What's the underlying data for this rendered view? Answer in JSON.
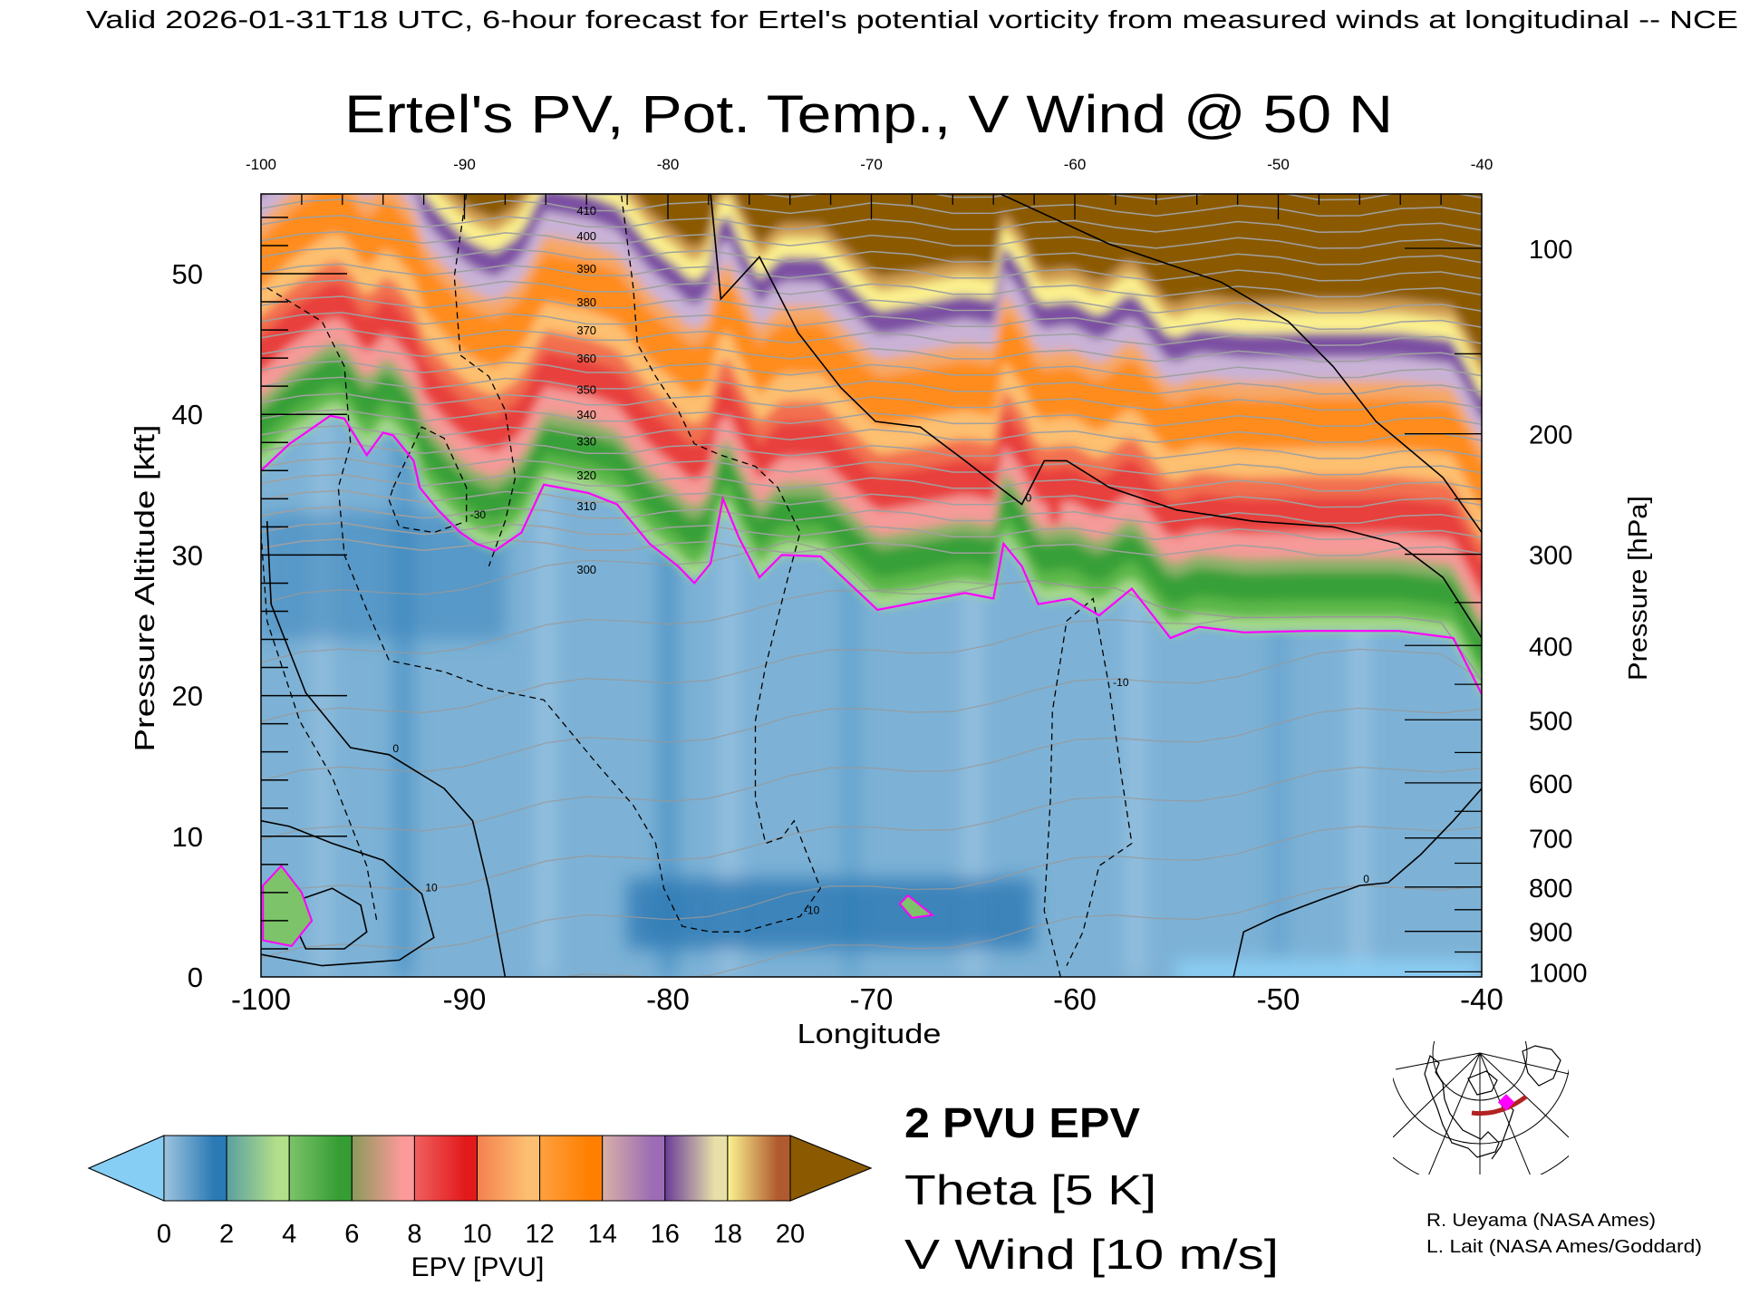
{
  "header": {
    "caption": "Valid 2026-01-31T18 UTC, 6-hour forecast for Ertel's potential vorticity from measured winds at longitudinal -- NCE"
  },
  "chart_data": {
    "type": "heatmap",
    "title": "Ertel's PV, Pot. Temp., V Wind @ 50 N",
    "xlabel": "Longitude",
    "ylabel": "Pressure Altitude [kft]",
    "y2label": "Pressure [hPa]",
    "xlim": [
      -100,
      -40
    ],
    "ylim": [
      0,
      55.7
    ],
    "x_ticks": [
      "-100",
      "-90",
      "-80",
      "-70",
      "-60",
      "-50",
      "-40"
    ],
    "x_tick_values": [
      -100,
      -90,
      -80,
      -70,
      -60,
      -50,
      -40
    ],
    "y_ticks": [
      "0",
      "10",
      "20",
      "30",
      "40",
      "50"
    ],
    "y_tick_values": [
      0,
      10,
      20,
      30,
      40,
      50
    ],
    "pressure_ticks": [
      "100",
      "200",
      "300",
      "400",
      "500",
      "600",
      "700",
      "800",
      "900",
      "1000"
    ],
    "pressure_tick_values": [
      100,
      200,
      300,
      400,
      500,
      600,
      700,
      800,
      900,
      1000
    ],
    "colorbar": {
      "label": "EPV [PVU]",
      "ticks": [
        "0",
        "2",
        "4",
        "6",
        "8",
        "10",
        "12",
        "14",
        "16",
        "18",
        "20"
      ],
      "under_color": "#87cef5",
      "over_color": "#8b5a00",
      "segments": [
        [
          "#9ec4de",
          "#2a7ab5"
        ],
        [
          "#5a9fa0",
          "#b2df8a"
        ],
        [
          "#7cc36a",
          "#359d34"
        ],
        [
          "#8a9a5a",
          "#fb9a99"
        ],
        [
          "#f06060",
          "#e31a1c"
        ],
        [
          "#f48050",
          "#fdbf6f"
        ],
        [
          "#ffa040",
          "#ff7f00"
        ],
        [
          "#d8b0a8",
          "#9c6cb4"
        ],
        [
          "#6a3d9a",
          "#e8e0a8"
        ],
        [
          "#fbf38f",
          "#b05a30"
        ]
      ]
    },
    "epv_2pvu_contour": [
      [
        -100,
        36.0
      ],
      [
        -98.6,
        37.9
      ],
      [
        -96.6,
        39.9
      ],
      [
        -95.9,
        39.7
      ],
      [
        -94.8,
        37.1
      ],
      [
        -94.0,
        38.7
      ],
      [
        -93.5,
        38.5
      ],
      [
        -92.5,
        36.7
      ],
      [
        -92.2,
        34.8
      ],
      [
        -91.3,
        33.2
      ],
      [
        -90.2,
        31.6
      ],
      [
        -89.4,
        30.8
      ],
      [
        -88.5,
        30.3
      ],
      [
        -87.2,
        31.6
      ],
      [
        -86.1,
        35.0
      ],
      [
        -83.9,
        34.4
      ],
      [
        -82.5,
        33.6
      ],
      [
        -80.9,
        30.8
      ],
      [
        -79.5,
        29.2
      ],
      [
        -78.7,
        28.0
      ],
      [
        -77.9,
        29.4
      ],
      [
        -77.3,
        34.0
      ],
      [
        -76.5,
        31.2
      ],
      [
        -75.5,
        28.4
      ],
      [
        -74.4,
        30.0
      ],
      [
        -72.5,
        29.9
      ],
      [
        -69.7,
        26.1
      ],
      [
        -67.5,
        26.7
      ],
      [
        -65.4,
        27.3
      ],
      [
        -64.0,
        26.9
      ],
      [
        -63.5,
        30.8
      ],
      [
        -62.6,
        29.2
      ],
      [
        -61.8,
        26.5
      ],
      [
        -60.2,
        26.9
      ],
      [
        -58.8,
        25.7
      ],
      [
        -57.2,
        27.6
      ],
      [
        -55.3,
        24.1
      ],
      [
        -53.9,
        24.9
      ],
      [
        -51.7,
        24.5
      ],
      [
        -48.5,
        24.6
      ],
      [
        -44.1,
        24.6
      ],
      [
        -41.4,
        24.1
      ],
      [
        -40,
        20.1
      ]
    ],
    "theta_levels": [
      {
        "label": "300",
        "kft": 29.0
      },
      {
        "label": "310",
        "kft": 33.5
      },
      {
        "label": "320",
        "kft": 35.7
      },
      {
        "label": "330",
        "kft": 38.1
      },
      {
        "label": "340",
        "kft": 40.0
      },
      {
        "label": "350",
        "kft": 41.8
      },
      {
        "label": "360",
        "kft": 44.0
      },
      {
        "label": "370",
        "kft": 46.0
      },
      {
        "label": "380",
        "kft": 48.0
      },
      {
        "label": "390",
        "kft": 50.4
      },
      {
        "label": "400",
        "kft": 52.7
      },
      {
        "label": "410",
        "kft": 54.5
      }
    ],
    "v_wind_contours": [
      {
        "label": "0",
        "style": "solid",
        "points": [
          [
            -99.7,
            32.4
          ],
          [
            -99.5,
            26.5
          ],
          [
            -97.8,
            20.2
          ],
          [
            -95.6,
            16.3
          ],
          [
            -93.7,
            15.8
          ],
          [
            -91.0,
            13.4
          ],
          [
            -89.6,
            11.1
          ],
          [
            -88.8,
            6.3
          ],
          [
            -88.0,
            0
          ]
        ]
      },
      {
        "label": "0",
        "style": "solid",
        "points": [
          [
            -77.9,
            55.7
          ],
          [
            -77.4,
            48.2
          ],
          [
            -75.5,
            51.2
          ],
          [
            -73.6,
            45.8
          ],
          [
            -71.5,
            41.9
          ],
          [
            -69.8,
            39.5
          ],
          [
            -67.6,
            39.1
          ],
          [
            -65.4,
            36.7
          ],
          [
            -63.7,
            34.8
          ],
          [
            -62.6,
            33.6
          ],
          [
            -61.5,
            36.7
          ],
          [
            -60.4,
            36.7
          ],
          [
            -58.3,
            34.8
          ],
          [
            -55.0,
            33.2
          ],
          [
            -51.2,
            32.4
          ],
          [
            -47.3,
            32.0
          ],
          [
            -44.1,
            30.8
          ],
          [
            -41.9,
            28.4
          ],
          [
            -40.0,
            24.1
          ]
        ]
      },
      {
        "label": "0",
        "style": "solid",
        "points": [
          [
            -52.2,
            0
          ],
          [
            -51.7,
            3.2
          ],
          [
            -50.1,
            4.3
          ],
          [
            -47.9,
            5.5
          ],
          [
            -46.0,
            6.5
          ],
          [
            -44.6,
            6.7
          ],
          [
            -43.0,
            8.7
          ],
          [
            -41.4,
            11.1
          ],
          [
            -40,
            13.4
          ]
        ]
      },
      {
        "label": "",
        "style": "solid",
        "points": [
          [
            -63.7,
            55.7
          ],
          [
            -58.3,
            52.1
          ],
          [
            -52.8,
            49.4
          ],
          [
            -49.5,
            46.6
          ],
          [
            -47.3,
            43.4
          ],
          [
            -45.2,
            39.5
          ],
          [
            -41.9,
            35.5
          ],
          [
            -40,
            31.6
          ]
        ]
      },
      {
        "label": "10",
        "style": "solid",
        "points": [
          [
            -100,
            11.1
          ],
          [
            -98.6,
            10.7
          ],
          [
            -96.5,
            9.5
          ],
          [
            -94.0,
            8.3
          ],
          [
            -92.1,
            5.9
          ],
          [
            -91.5,
            2.8
          ],
          [
            -93.2,
            1.2
          ],
          [
            -97.0,
            0.8
          ],
          [
            -100,
            1.6
          ]
        ]
      },
      {
        "label": "",
        "style": "solid",
        "points": [
          [
            -98.1,
            5.5
          ],
          [
            -96.5,
            6.3
          ],
          [
            -95.1,
            5.1
          ],
          [
            -94.8,
            3.2
          ],
          [
            -95.9,
            2.0
          ],
          [
            -97.8,
            2.0
          ],
          [
            -98.4,
            3.9
          ],
          [
            -98.1,
            5.5
          ]
        ]
      },
      {
        "label": "-10",
        "style": "dashed",
        "points": [
          [
            -99.7,
            49.0
          ],
          [
            -97.0,
            46.6
          ],
          [
            -95.9,
            43.4
          ],
          [
            -95.6,
            37.9
          ],
          [
            -96.2,
            34.8
          ],
          [
            -95.9,
            30.0
          ],
          [
            -94.8,
            26.1
          ],
          [
            -93.7,
            22.5
          ],
          [
            -91.0,
            21.7
          ],
          [
            -88.8,
            20.5
          ],
          [
            -86.1,
            19.7
          ],
          [
            -83.4,
            15.0
          ],
          [
            -81.7,
            12.2
          ],
          [
            -80.6,
            9.5
          ],
          [
            -80.2,
            6.3
          ],
          [
            -79.3,
            3.6
          ],
          [
            -77.9,
            3.2
          ],
          [
            -76.3,
            3.2
          ],
          [
            -74.6,
            3.9
          ],
          [
            -73.5,
            4.3
          ],
          [
            -72.5,
            6.3
          ],
          [
            -73.8,
            11.1
          ],
          [
            -74.4,
            9.9
          ],
          [
            -75.2,
            9.5
          ],
          [
            -75.7,
            12.6
          ],
          [
            -75.7,
            18.2
          ],
          [
            -75.2,
            22.1
          ],
          [
            -74.1,
            28.4
          ],
          [
            -73.5,
            31.6
          ],
          [
            -74.6,
            34.8
          ],
          [
            -75.7,
            36.3
          ],
          [
            -77.4,
            37.1
          ],
          [
            -78.7,
            37.9
          ],
          [
            -79.5,
            40.3
          ],
          [
            -80.6,
            42.7
          ],
          [
            -81.5,
            45.0
          ],
          [
            -81.7,
            49.0
          ],
          [
            -82.3,
            55.7
          ]
        ]
      },
      {
        "label": "",
        "style": "dashed",
        "points": [
          [
            -89.9,
            55.7
          ],
          [
            -90.5,
            49.8
          ],
          [
            -90.2,
            44.2
          ],
          [
            -88.8,
            42.7
          ],
          [
            -88.0,
            40.3
          ],
          [
            -87.5,
            35.5
          ],
          [
            -88.0,
            32.4
          ],
          [
            -88.8,
            29.2
          ]
        ]
      },
      {
        "label": "-30",
        "style": "dashed",
        "points": [
          [
            -93.5,
            34.8
          ],
          [
            -92.1,
            39.1
          ],
          [
            -91.0,
            38.3
          ],
          [
            -89.9,
            34.8
          ],
          [
            -89.9,
            32.4
          ],
          [
            -91.5,
            31.6
          ],
          [
            -93.2,
            32.0
          ],
          [
            -93.7,
            33.9
          ],
          [
            -93.5,
            34.8
          ]
        ]
      },
      {
        "label": "-10",
        "style": "dashed",
        "points": [
          [
            -60.7,
            0
          ],
          [
            -61.5,
            4.7
          ],
          [
            -61.2,
            12.6
          ],
          [
            -61.1,
            18.9
          ],
          [
            -60.4,
            25.3
          ],
          [
            -59.1,
            26.9
          ],
          [
            -58.3,
            20.5
          ],
          [
            -57.7,
            14.2
          ],
          [
            -57.2,
            9.5
          ],
          [
            -58.8,
            7.9
          ],
          [
            -59.6,
            3.2
          ],
          [
            -60.4,
            0.8
          ]
        ]
      },
      {
        "label": "",
        "style": "dashed",
        "points": [
          [
            -100,
            31.6
          ],
          [
            -99.7,
            25.3
          ],
          [
            -98.1,
            18.2
          ],
          [
            -96.5,
            14.2
          ],
          [
            -94.8,
            7.9
          ],
          [
            -94.3,
            3.9
          ]
        ]
      }
    ]
  },
  "legend": {
    "epv_line": "2 PVU EPV",
    "theta": "Theta [5 K]",
    "vwind": "V Wind [10 m/s]",
    "epv_color": "#ff00ff",
    "theta_color": "#a0a0a0"
  },
  "credits": {
    "line1": "R. Ueyama (NASA Ames)",
    "line2": "L. Lait (NASA Ames/Goddard)"
  },
  "inset_map": {
    "track_color": "#b22222",
    "marker_color": "#ff00ff"
  }
}
